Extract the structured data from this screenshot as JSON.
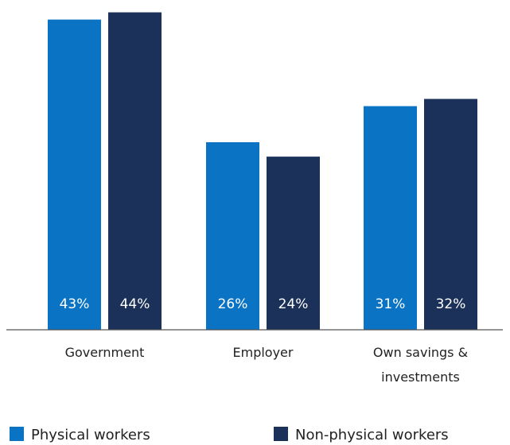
{
  "chart_data": {
    "type": "bar",
    "categories": [
      [
        "Government"
      ],
      [
        "Employer"
      ],
      [
        "Own savings &",
        "investments"
      ]
    ],
    "series": [
      {
        "name": "Physical workers",
        "color": "#0A73C4",
        "values": [
          43,
          26,
          31
        ]
      },
      {
        "name": "Non-physical workers",
        "color": "#1B3159",
        "values": [
          44,
          24,
          32
        ]
      }
    ],
    "value_suffix": "%",
    "ylim": [
      0,
      44.5
    ],
    "grid": false,
    "legend_position": "bottom",
    "axis_color": "#555555"
  }
}
